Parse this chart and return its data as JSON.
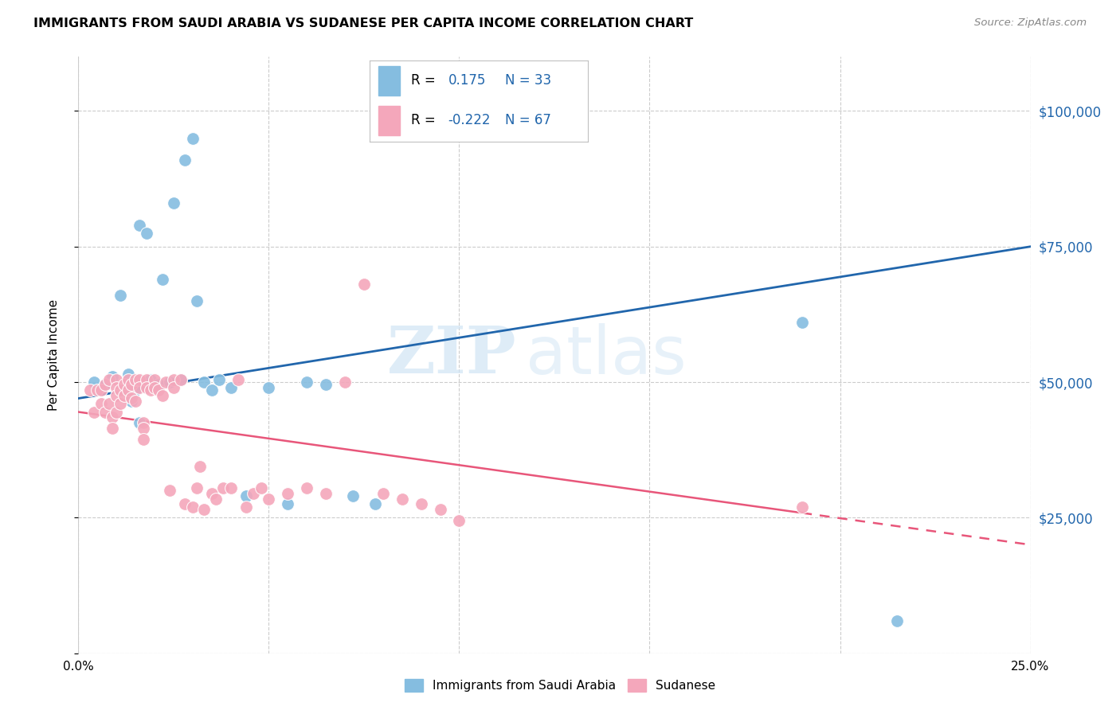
{
  "title": "IMMIGRANTS FROM SAUDI ARABIA VS SUDANESE PER CAPITA INCOME CORRELATION CHART",
  "source": "Source: ZipAtlas.com",
  "ylabel": "Per Capita Income",
  "yticks": [
    0,
    25000,
    50000,
    75000,
    100000
  ],
  "ytick_labels": [
    "",
    "$25,000",
    "$50,000",
    "$75,000",
    "$100,000"
  ],
  "xlim": [
    0.0,
    0.25
  ],
  "ylim": [
    0,
    110000
  ],
  "watermark_zip": "ZIP",
  "watermark_atlas": "atlas",
  "series1_color": "#85bde0",
  "series2_color": "#f4a7bb",
  "trendline1_color": "#2166ac",
  "trendline2_color": "#e8567a",
  "series1_label": "Immigrants from Saudi Arabia",
  "series2_label": "Sudanese",
  "trendline1_x0": 0.0,
  "trendline1_y0": 47000,
  "trendline1_x1": 0.25,
  "trendline1_y1": 75000,
  "trendline2_x0": 0.0,
  "trendline2_y0": 44500,
  "trendline2_x1": 0.25,
  "trendline2_y1": 20000,
  "trendline2_solid_end": 0.19,
  "series1_x": [
    0.004,
    0.007,
    0.009,
    0.011,
    0.012,
    0.013,
    0.014,
    0.015,
    0.016,
    0.016,
    0.018,
    0.019,
    0.021,
    0.022,
    0.024,
    0.025,
    0.027,
    0.028,
    0.03,
    0.031,
    0.033,
    0.035,
    0.037,
    0.04,
    0.044,
    0.05,
    0.055,
    0.06,
    0.065,
    0.072,
    0.078,
    0.19,
    0.215
  ],
  "series1_y": [
    50000,
    49500,
    51000,
    66000,
    48500,
    51500,
    46500,
    48500,
    42500,
    79000,
    77500,
    50500,
    49500,
    69000,
    50000,
    83000,
    50500,
    91000,
    95000,
    65000,
    50000,
    48500,
    50500,
    49000,
    29000,
    49000,
    27500,
    50000,
    49500,
    29000,
    27500,
    61000,
    6000
  ],
  "series2_x": [
    0.003,
    0.004,
    0.005,
    0.006,
    0.006,
    0.007,
    0.007,
    0.008,
    0.008,
    0.009,
    0.009,
    0.01,
    0.01,
    0.01,
    0.01,
    0.011,
    0.011,
    0.012,
    0.012,
    0.013,
    0.013,
    0.014,
    0.014,
    0.015,
    0.015,
    0.016,
    0.016,
    0.017,
    0.017,
    0.017,
    0.018,
    0.018,
    0.019,
    0.02,
    0.02,
    0.021,
    0.022,
    0.023,
    0.024,
    0.025,
    0.025,
    0.027,
    0.028,
    0.03,
    0.031,
    0.032,
    0.033,
    0.035,
    0.036,
    0.038,
    0.04,
    0.042,
    0.044,
    0.046,
    0.048,
    0.05,
    0.055,
    0.06,
    0.065,
    0.07,
    0.075,
    0.08,
    0.085,
    0.09,
    0.095,
    0.1,
    0.19
  ],
  "series2_y": [
    48500,
    44500,
    48500,
    48500,
    46000,
    49500,
    44500,
    50500,
    46000,
    43500,
    41500,
    50500,
    49000,
    47500,
    44500,
    48500,
    46000,
    49500,
    47500,
    50500,
    48500,
    49500,
    47000,
    50500,
    46500,
    50500,
    49000,
    42500,
    41500,
    39500,
    50500,
    49000,
    48500,
    50500,
    49000,
    48500,
    47500,
    50000,
    30000,
    50500,
    49000,
    50500,
    27500,
    27000,
    30500,
    34500,
    26500,
    29500,
    28500,
    30500,
    30500,
    50500,
    27000,
    29500,
    30500,
    28500,
    29500,
    30500,
    29500,
    50000,
    68000,
    29500,
    28500,
    27500,
    26500,
    24500,
    27000
  ],
  "background_color": "#ffffff",
  "grid_color": "#dddddd"
}
